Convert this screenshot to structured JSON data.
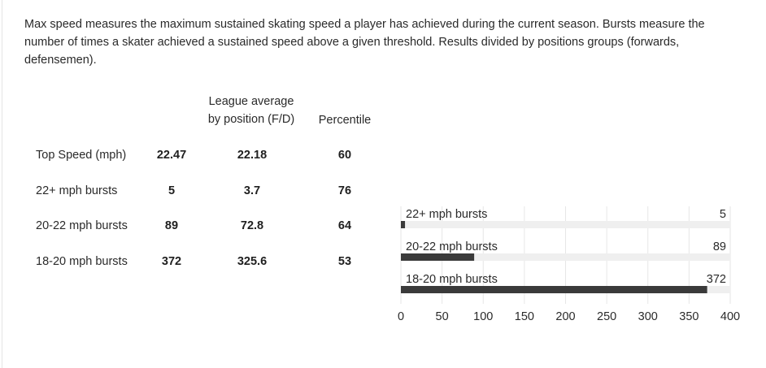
{
  "description": "Max speed measures the maximum sustained skating speed a player has achieved during the current season. Bursts measure the number of times a skater achieved a sustained speed above a given threshold. Results divided by positions groups (forwards, defensemen).",
  "table": {
    "headers": {
      "league_line1": "League average",
      "league_line2": "by position (F/D)",
      "percentile": "Percentile"
    },
    "rows": [
      {
        "label": "Top Speed (mph)",
        "value": "22.47",
        "league": "22.18",
        "percentile": "60"
      },
      {
        "label": "22+ mph bursts",
        "value": "5",
        "league": "3.7",
        "percentile": "76"
      },
      {
        "label": "20-22 mph bursts",
        "value": "89",
        "league": "72.8",
        "percentile": "64"
      },
      {
        "label": "18-20 mph bursts",
        "value": "372",
        "league": "325.6",
        "percentile": "53"
      }
    ]
  },
  "chart_data": {
    "type": "bar",
    "orientation": "horizontal",
    "categories": [
      "22+ mph bursts",
      "20-22 mph bursts",
      "18-20 mph bursts"
    ],
    "values": [
      5,
      89,
      372
    ],
    "value_labels": [
      "5",
      "89",
      "372"
    ],
    "xlim": [
      0,
      400
    ],
    "xticks": [
      0,
      50,
      100,
      150,
      200,
      250,
      300,
      350,
      400
    ],
    "grid": true,
    "colors": {
      "bar": "#3a3a3a",
      "track": "#efefef",
      "grid": "#e6e6e6"
    }
  }
}
